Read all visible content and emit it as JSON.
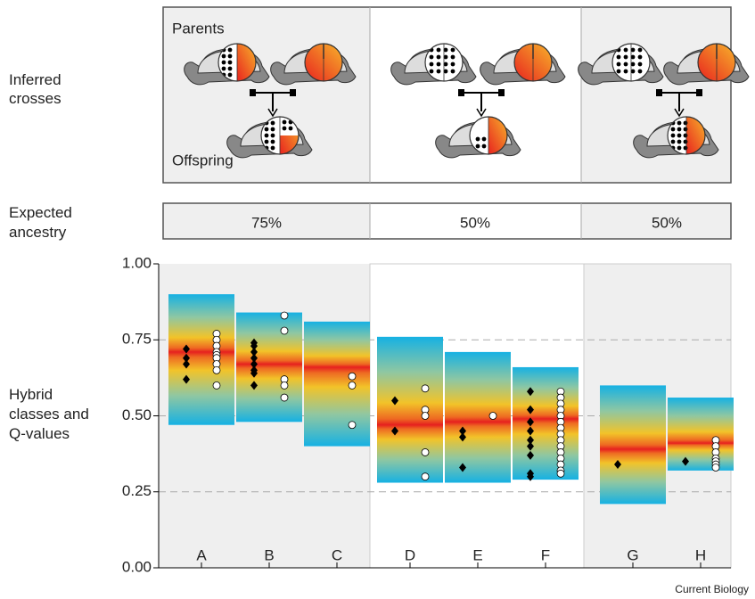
{
  "labels": {
    "crosses": [
      "Inferred",
      "crosses"
    ],
    "parents": "Parents",
    "offspring": "Offspring",
    "ancestry_title": [
      "Expected",
      "ancestry"
    ],
    "ancestry": [
      "75%",
      "50%",
      "50%"
    ],
    "yaxis": [
      "Hybrid",
      "classes and",
      "Q-values"
    ],
    "credit": "Current Biology"
  },
  "chart_data": {
    "type": "range-dot",
    "categories": [
      "A",
      "B",
      "C",
      "D",
      "E",
      "F",
      "G",
      "H"
    ],
    "boxes": {
      "high": [
        0.9,
        0.84,
        0.81,
        0.76,
        0.71,
        0.66,
        0.6,
        0.56
      ],
      "center": [
        0.71,
        0.67,
        0.66,
        0.47,
        0.48,
        0.49,
        0.39,
        0.41
      ],
      "low": [
        0.47,
        0.48,
        0.4,
        0.28,
        0.28,
        0.29,
        0.21,
        0.32
      ]
    },
    "diamonds": [
      [
        0.72,
        0.69,
        0.67,
        0.62
      ],
      [
        0.74,
        0.73,
        0.71,
        0.69,
        0.67,
        0.65,
        0.64,
        0.6
      ],
      [],
      [
        0.55,
        0.45
      ],
      [
        0.45,
        0.43,
        0.33
      ],
      [
        0.58,
        0.52,
        0.48,
        0.45,
        0.42,
        0.4,
        0.37,
        0.31,
        0.3
      ],
      [
        0.34
      ],
      [
        0.35
      ]
    ],
    "circles": [
      [
        0.77,
        0.75,
        0.73,
        0.71,
        0.7,
        0.69,
        0.67,
        0.65,
        0.6
      ],
      [
        0.83,
        0.78,
        0.62,
        0.6,
        0.56
      ],
      [
        0.63,
        0.6,
        0.47
      ],
      [
        0.59,
        0.52,
        0.5,
        0.38,
        0.3
      ],
      [
        0.5
      ],
      [
        0.58,
        0.56,
        0.54,
        0.52,
        0.5,
        0.48,
        0.46,
        0.44,
        0.42,
        0.4,
        0.38,
        0.36,
        0.34,
        0.32,
        0.31
      ],
      [],
      [
        0.42,
        0.4,
        0.38,
        0.36,
        0.35,
        0.34,
        0.33
      ]
    ],
    "diamond_color": "#000000",
    "circle_color": "#ffffff",
    "ylim": [
      0,
      1
    ],
    "yticks": [
      {
        "value": 0,
        "label": "0.00"
      },
      {
        "value": 0.25,
        "label": "0.25"
      },
      {
        "value": 0.5,
        "label": "0.50"
      },
      {
        "value": 0.75,
        "label": "0.75"
      },
      {
        "value": 1,
        "label": "1.00"
      }
    ],
    "grid": true
  }
}
